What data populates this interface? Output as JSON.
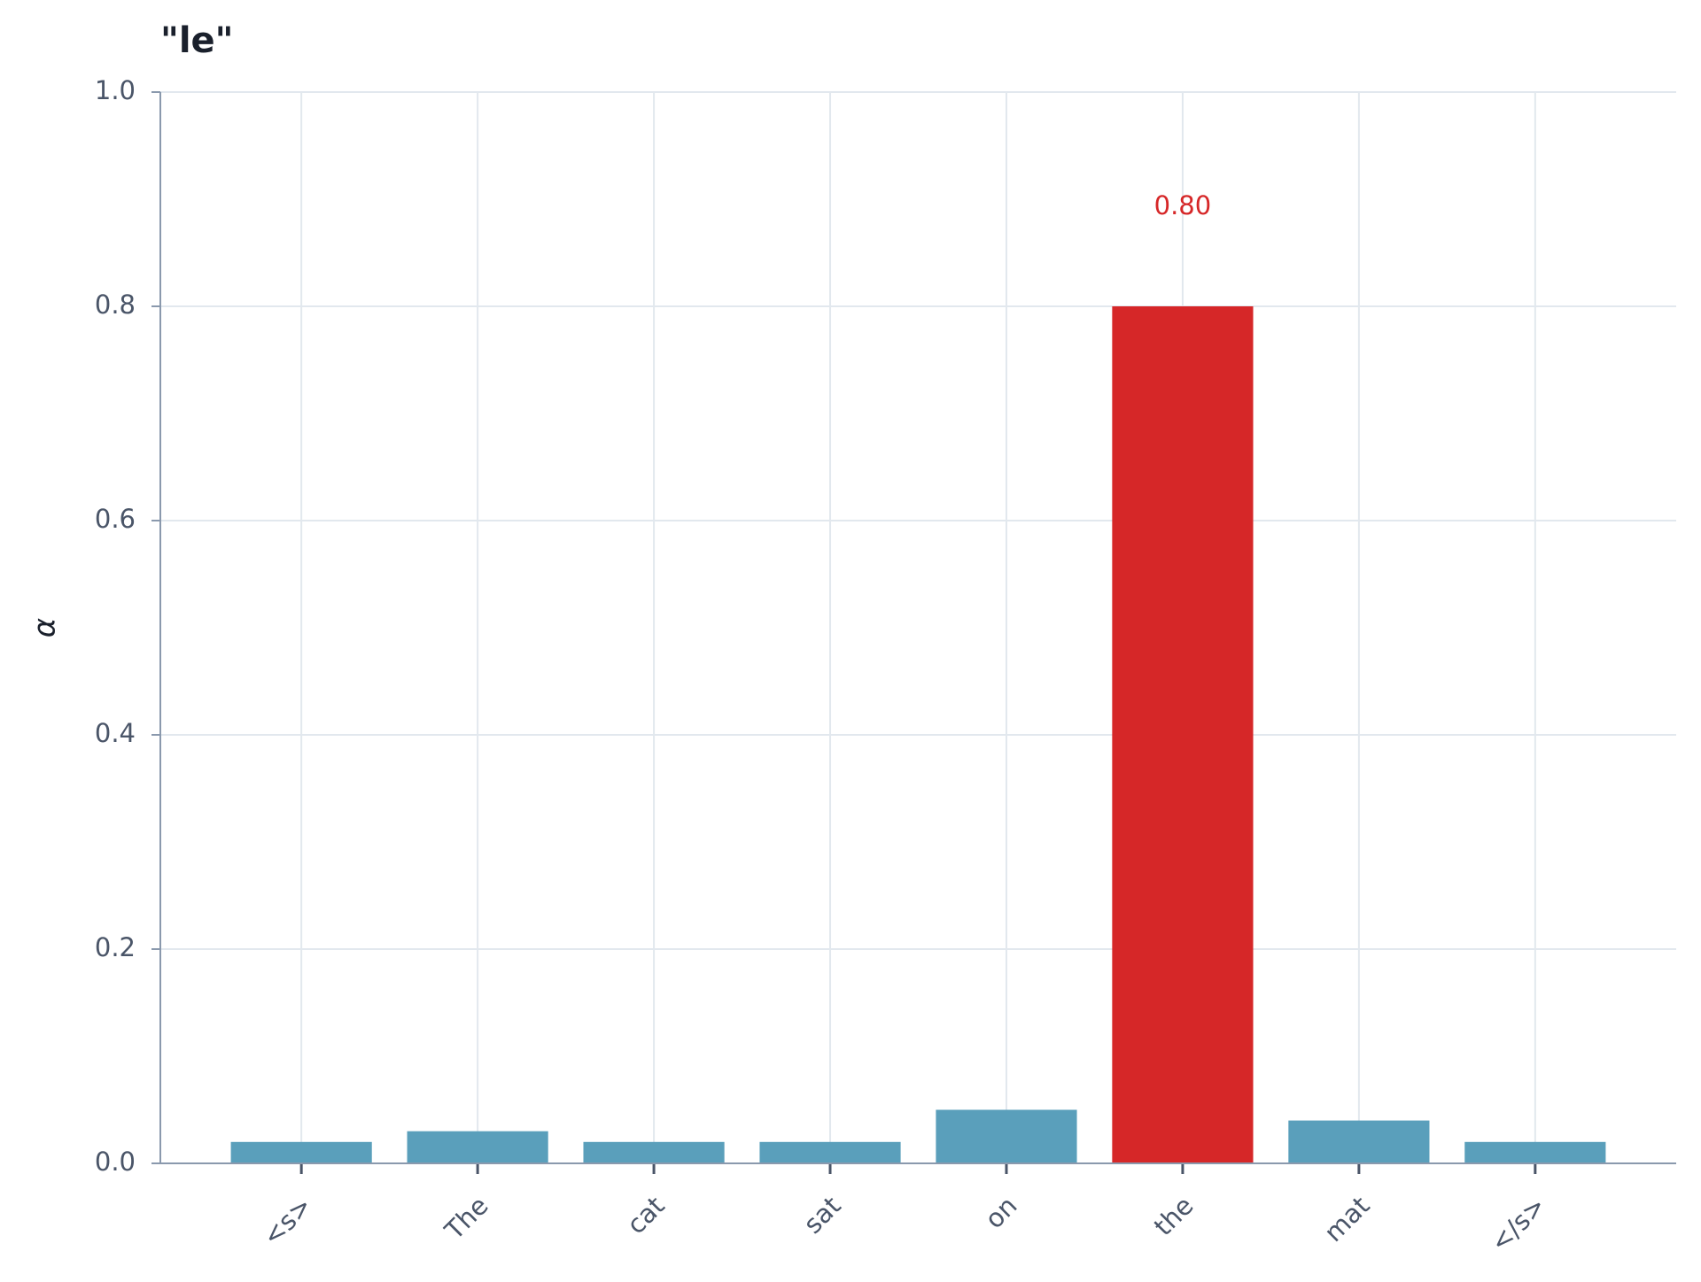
{
  "chart_data": {
    "type": "bar",
    "title": "\"le\"",
    "y_label": "α",
    "categories": [
      "<s>",
      "The",
      "cat",
      "sat",
      "on",
      "the",
      "mat",
      "</s>"
    ],
    "values": [
      0.02,
      0.03,
      0.02,
      0.02,
      0.05,
      0.8,
      0.04,
      0.02
    ],
    "value_labels": [
      null,
      null,
      null,
      null,
      null,
      "0.80",
      null,
      null
    ],
    "colors": [
      "#5a9fbb",
      "#5a9fbb",
      "#5a9fbb",
      "#5a9fbb",
      "#5a9fbb",
      "#d62728",
      "#5a9fbb",
      "#5a9fbb"
    ],
    "ylim": [
      0,
      1
    ],
    "yticks": [
      {
        "value": 0,
        "label": "0.0"
      },
      0.2,
      0.4,
      0.6,
      0.8,
      {
        "value": 1,
        "label": "1.0"
      }
    ],
    "grid": true
  }
}
